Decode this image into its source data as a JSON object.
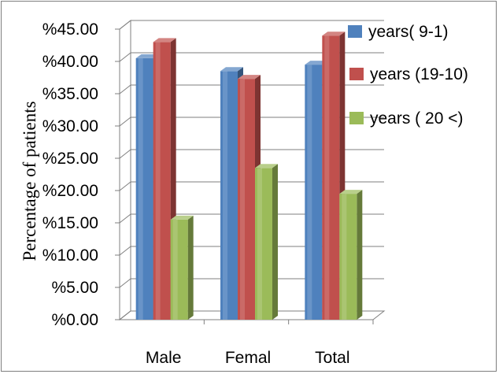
{
  "chart_data": {
    "type": "bar",
    "title": "",
    "xlabel": "",
    "ylabel": "Percentage of patients",
    "categories": [
      "Male",
      "Femal",
      "Total"
    ],
    "series": [
      {
        "name": "years( 9-1)",
        "color": "#4f81bd",
        "values": [
          40.5,
          38.5,
          39.5
        ]
      },
      {
        "name": "years (19-10)",
        "color": "#c0504d",
        "values": [
          43.0,
          37.3,
          44.0
        ]
      },
      {
        "name": "years ( 20 <)",
        "color": "#9bbb59",
        "values": [
          15.5,
          23.5,
          19.5
        ]
      }
    ],
    "ylim": [
      0,
      45
    ],
    "yticks": [
      "%0.00",
      "%5.00",
      "%10.00",
      "%15.00",
      "%20.00",
      "%25.00",
      "%30.00",
      "%35.00",
      "%40.00",
      "%45.00"
    ],
    "grid": true,
    "legend_position": "right",
    "style": "3d-clustered-column"
  }
}
